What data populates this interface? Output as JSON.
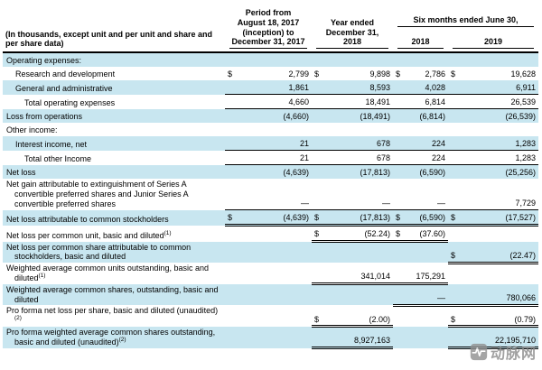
{
  "header": {
    "label": "(In thousands, except unit and per unit and share and per share data)",
    "period_col": "Period from\nAugust 18, 2017\n(inception) to\nDecember 31, 2017",
    "year_col": "Year ended\nDecember 31, 2018",
    "six_months_group": "Six months ended June 30,",
    "six_months_2018": "2018",
    "six_months_2019": "2019"
  },
  "table": {
    "rows": [
      {
        "label": "Operating expenses:",
        "indent": 0,
        "shaded": true,
        "cells": [
          {},
          {},
          {},
          {}
        ]
      },
      {
        "label": "Research and development",
        "indent": 1,
        "shaded": false,
        "cells": [
          {
            "cur": "$",
            "val": "2,799"
          },
          {
            "cur": "$",
            "val": "9,898"
          },
          {
            "cur": "$",
            "val": "2,786"
          },
          {
            "cur": "$",
            "val": "19,628"
          }
        ]
      },
      {
        "label": "General and administrative",
        "indent": 1,
        "shaded": true,
        "cells": [
          {
            "val": "1,861",
            "b": "u"
          },
          {
            "val": "8,593",
            "b": "u"
          },
          {
            "val": "4,028",
            "b": "u"
          },
          {
            "val": "6,911",
            "b": "u"
          }
        ]
      },
      {
        "label": "Total operating expenses",
        "indent": 2,
        "shaded": false,
        "cells": [
          {
            "val": "4,660",
            "b": "u"
          },
          {
            "val": "18,491",
            "b": "u"
          },
          {
            "val": "6,814",
            "b": "u"
          },
          {
            "val": "26,539",
            "b": "u"
          }
        ]
      },
      {
        "label": "Loss from operations",
        "indent": 0,
        "shaded": true,
        "cells": [
          {
            "val": "(4,660)"
          },
          {
            "val": "(18,491)"
          },
          {
            "val": "(6,814)"
          },
          {
            "val": "(26,539)"
          }
        ]
      },
      {
        "label": "Other income:",
        "indent": 0,
        "shaded": false,
        "cells": [
          {},
          {},
          {},
          {}
        ]
      },
      {
        "label": "Interest income, net",
        "indent": 1,
        "shaded": true,
        "cells": [
          {
            "val": "21",
            "b": "u"
          },
          {
            "val": "678",
            "b": "u"
          },
          {
            "val": "224",
            "b": "u"
          },
          {
            "val": "1,283",
            "b": "u"
          }
        ]
      },
      {
        "label": "Total other Income",
        "indent": 2,
        "shaded": false,
        "cells": [
          {
            "val": "21",
            "b": "u"
          },
          {
            "val": "678",
            "b": "u"
          },
          {
            "val": "224",
            "b": "u"
          },
          {
            "val": "1,283",
            "b": "u"
          }
        ]
      },
      {
        "label": "Net loss",
        "indent": 0,
        "shaded": true,
        "cells": [
          {
            "val": "(4,639)"
          },
          {
            "val": "(17,813)"
          },
          {
            "val": "(6,590)"
          },
          {
            "val": "(25,256)"
          }
        ]
      },
      {
        "label": "Net gain attributable to extinguishment of Series A convertible preferred shares and Junior Series A convertible preferred shares",
        "indent": 0,
        "hang": true,
        "shaded": false,
        "cells": [
          {
            "val": "—",
            "b": "u"
          },
          {
            "val": "—",
            "b": "u"
          },
          {
            "val": "—",
            "b": "u"
          },
          {
            "val": "7,729",
            "b": "u"
          }
        ]
      },
      {
        "label": "Net loss attributable to common stockholders",
        "indent": 0,
        "shaded": true,
        "cells": [
          {
            "cur": "$",
            "val": "(4,639)",
            "b": "uu"
          },
          {
            "cur": "$",
            "val": "(17,813)",
            "b": "uu"
          },
          {
            "cur": "$",
            "val": "(6,590)",
            "b": "uu"
          },
          {
            "cur": "$",
            "val": "(17,527)",
            "b": "uu"
          }
        ]
      },
      {
        "label": "Net loss per common unit, basic and diluted",
        "sup": "(1)",
        "indent": 0,
        "shaded": false,
        "cells": [
          {},
          {
            "cur": "$",
            "val": "(52.24)",
            "b": "uu"
          },
          {
            "cur": "$",
            "val": "(37.60)",
            "b": "uu"
          },
          {}
        ]
      },
      {
        "label": "Net loss per common share attributable to common stockholders, basic and diluted",
        "indent": 0,
        "hang": true,
        "shaded": true,
        "cells": [
          {},
          {},
          {},
          {
            "cur": "$",
            "val": "(22.47)",
            "b": "uu"
          }
        ]
      },
      {
        "label": "Weighted average common units outstanding, basic and diluted",
        "sup": "(1)",
        "indent": 0,
        "hang": true,
        "shaded": false,
        "cells": [
          {},
          {
            "val": "341,014",
            "b": "uu"
          },
          {
            "val": "175,291",
            "b": "uu"
          },
          {}
        ]
      },
      {
        "label": "Weighted average common shares, outstanding, basic and diluted",
        "indent": 0,
        "hang": true,
        "shaded": true,
        "cells": [
          {},
          {},
          {
            "val": "—",
            "b": "uu"
          },
          {
            "val": "780,066",
            "b": "uu"
          }
        ]
      },
      {
        "label": "Pro forma net loss per share, basic and diluted (unaudited)",
        "sup": "(2)",
        "indent": 0,
        "hang": true,
        "shaded": false,
        "cells": [
          {},
          {
            "cur": "$",
            "val": "(2.00)",
            "b": "uu"
          },
          {},
          {
            "cur": "$",
            "val": "(0.79)",
            "b": "uu"
          }
        ]
      },
      {
        "label": "Pro forma weighted average common shares outstanding, basic and diluted (unaudited)",
        "sup": "(2)",
        "indent": 0,
        "hang": true,
        "shaded": true,
        "cells": [
          {},
          {
            "val": "8,927,163",
            "b": "uu"
          },
          {},
          {
            "val": "22,195,710",
            "b": "uu"
          }
        ]
      }
    ]
  },
  "watermark": {
    "text": "动脉网",
    "logo_icon": "pulse-icon"
  },
  "colors": {
    "row_highlight": "#c8e6f0",
    "header_line": "#000000",
    "watermark_text": "#8a8a8a"
  }
}
